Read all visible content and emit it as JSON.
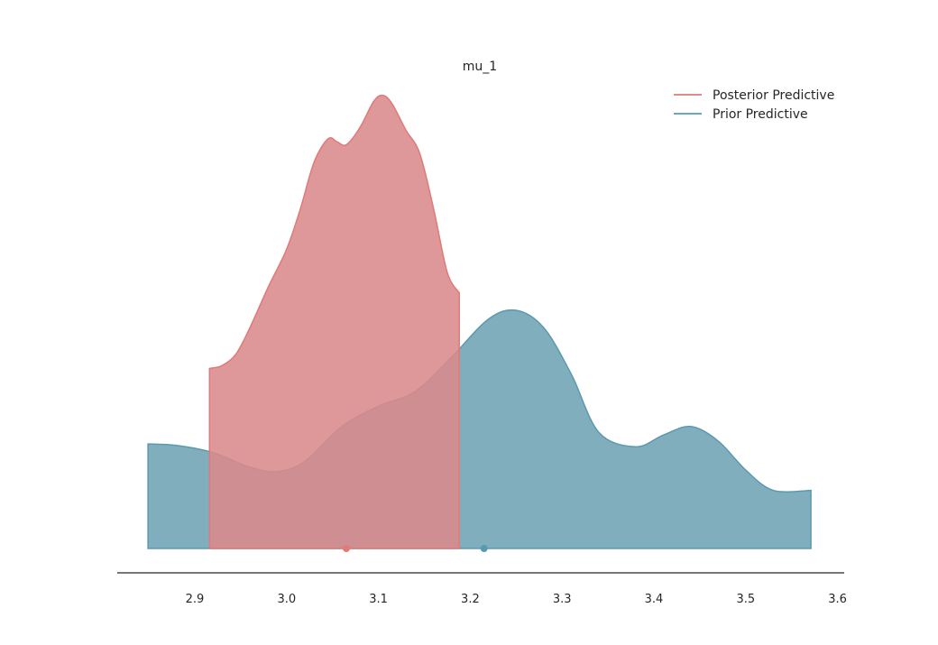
{
  "chart_data": {
    "type": "area",
    "title": "mu_1",
    "xlabel": "",
    "ylabel": "",
    "xlim": [
      2.85,
      3.6
    ],
    "xticks": [
      "2.9",
      "3.0",
      "3.1",
      "3.2",
      "3.3",
      "3.4",
      "3.5",
      "3.6"
    ],
    "grid": false,
    "legend_position": "top-right",
    "series": [
      {
        "name": "Posterior Predictive",
        "color": "#d98a8b",
        "line_color": "#e07a78",
        "mean": 3.065,
        "x": [
          2.916,
          2.93,
          2.945,
          2.96,
          2.98,
          3.0,
          3.015,
          3.03,
          3.045,
          3.055,
          3.065,
          3.08,
          3.095,
          3.105,
          3.115,
          3.13,
          3.145,
          3.16,
          3.175,
          3.188
        ],
        "y": [
          0.62,
          0.63,
          0.67,
          0.76,
          0.9,
          1.03,
          1.17,
          1.33,
          1.41,
          1.4,
          1.39,
          1.45,
          1.54,
          1.56,
          1.53,
          1.44,
          1.36,
          1.17,
          0.95,
          0.88
        ]
      },
      {
        "name": "Prior Predictive",
        "color": "#6fa3b3",
        "line_color": "#5a9ab0",
        "mean": 3.215,
        "x": [
          2.849,
          2.88,
          2.92,
          2.96,
          2.99,
          3.02,
          3.06,
          3.1,
          3.14,
          3.18,
          3.22,
          3.25,
          3.28,
          3.31,
          3.34,
          3.38,
          3.41,
          3.44,
          3.47,
          3.5,
          3.53,
          3.571
        ],
        "y": [
          0.36,
          0.355,
          0.33,
          0.28,
          0.265,
          0.3,
          0.42,
          0.49,
          0.54,
          0.66,
          0.79,
          0.82,
          0.76,
          0.6,
          0.4,
          0.35,
          0.39,
          0.42,
          0.37,
          0.27,
          0.2,
          0.2
        ]
      }
    ]
  }
}
